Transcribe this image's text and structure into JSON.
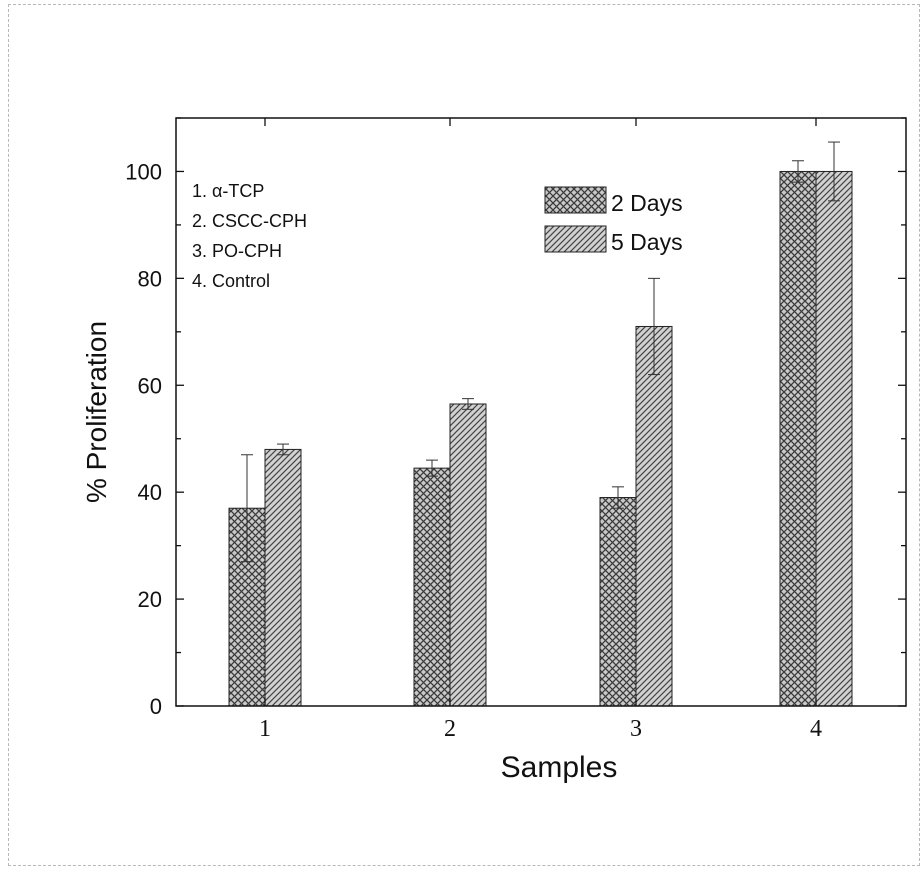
{
  "chart_data": {
    "type": "bar",
    "title": "",
    "xlabel": "Samples",
    "ylabel": "% Proliferation",
    "ylim": [
      0,
      110
    ],
    "yticks": [
      0,
      20,
      40,
      60,
      80,
      100
    ],
    "categories": [
      "1",
      "2",
      "3",
      "4"
    ],
    "series": [
      {
        "name": "2 Days",
        "values": [
          37,
          44.5,
          39,
          100
        ],
        "errors": [
          10,
          1.5,
          2,
          2
        ],
        "pattern": "crosshatch"
      },
      {
        "name": "5 Days",
        "values": [
          48,
          56.5,
          71,
          100
        ],
        "errors": [
          1,
          1,
          9,
          5.5
        ],
        "pattern": "diagonal"
      }
    ],
    "annotation_lines": [
      "1. α-TCP",
      "2. CSCC-CPH",
      "3. PO-CPH",
      "4. Control"
    ],
    "legend_position": "top-center",
    "grid": false
  }
}
